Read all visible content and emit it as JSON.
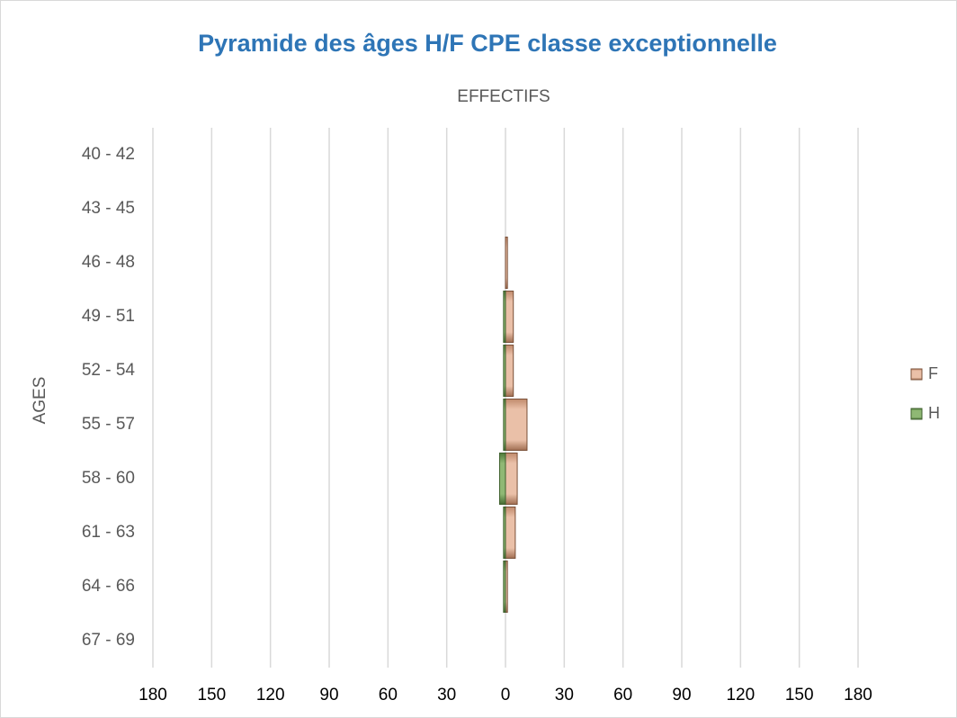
{
  "chart_data": {
    "type": "bar",
    "orientation": "horizontal",
    "title": "Pyramide des âges H/F CPE classe exceptionnelle",
    "xlabel": "EFFECTIFS",
    "ylabel": "AGES",
    "categories": [
      "40 - 42",
      "43 - 45",
      "46 - 48",
      "49 - 51",
      "52 - 54",
      "55 - 57",
      "58 - 60",
      "61 - 63",
      "64 - 66",
      "67 - 69"
    ],
    "series": [
      {
        "name": "F",
        "color": "#d8a487",
        "values": [
          0,
          0,
          1,
          4,
          4,
          11,
          6,
          5,
          1,
          0
        ]
      },
      {
        "name": "H",
        "color": "#6f9a55",
        "values": [
          0,
          0,
          0,
          -1,
          -1,
          -1,
          -3,
          -1,
          -1,
          0
        ]
      }
    ],
    "xlim": [
      -180,
      180
    ],
    "xticks": [
      {
        "value": -180,
        "label": "180"
      },
      {
        "value": -150,
        "label": "150"
      },
      {
        "value": -120,
        "label": "120"
      },
      {
        "value": -90,
        "label": "90"
      },
      {
        "value": -60,
        "label": "60"
      },
      {
        "value": -30,
        "label": "30"
      },
      0,
      30,
      60,
      90,
      120,
      150,
      180
    ],
    "grid": true,
    "legend": "right"
  }
}
